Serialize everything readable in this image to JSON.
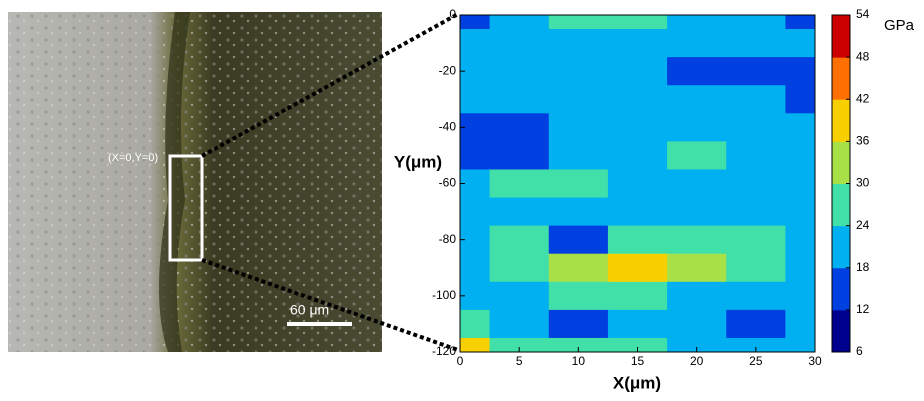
{
  "chart_data": {
    "type": "contour",
    "xlabel": "X(μm)",
    "ylabel": "Y(μm)",
    "xlim": [
      0,
      30
    ],
    "ylim": [
      -120,
      0
    ],
    "xticks": [
      0,
      5,
      10,
      15,
      20,
      25,
      30
    ],
    "yticks": [
      0,
      -20,
      -40,
      -60,
      -80,
      -100,
      -120
    ],
    "x": [
      0,
      5,
      10,
      15,
      20,
      25,
      30
    ],
    "y": [
      0,
      -10,
      -20,
      -30,
      -40,
      -50,
      -60,
      -70,
      -80,
      -90,
      -100,
      -110,
      -120
    ],
    "z": [
      [
        14,
        20,
        26,
        28,
        20,
        20,
        14
      ],
      [
        20,
        20,
        20,
        20,
        20,
        20,
        20
      ],
      [
        20,
        20,
        20,
        20,
        15,
        15,
        15
      ],
      [
        20,
        20,
        20,
        20,
        20,
        20,
        15
      ],
      [
        15,
        15,
        20,
        20,
        20,
        20,
        20
      ],
      [
        14,
        15,
        20,
        20,
        26,
        20,
        20
      ],
      [
        20,
        26,
        26,
        20,
        20,
        20,
        20
      ],
      [
        20,
        20,
        20,
        20,
        20,
        20,
        20
      ],
      [
        20,
        26,
        16,
        26,
        26,
        26,
        20
      ],
      [
        20,
        26,
        32,
        38,
        32,
        26,
        20
      ],
      [
        20,
        20,
        26,
        26,
        20,
        20,
        20
      ],
      [
        26,
        20,
        15,
        20,
        20,
        15,
        20
      ],
      [
        40,
        26,
        26,
        26,
        20,
        20,
        20
      ]
    ],
    "colorbar": {
      "label": "GPa",
      "levels": [
        6,
        12,
        18,
        24,
        30,
        36,
        42,
        48,
        54
      ],
      "colors": [
        "#00008f",
        "#0040e0",
        "#00b0f0",
        "#40e0a8",
        "#a8e048",
        "#f8d000",
        "#ff7000",
        "#cc0000"
      ]
    },
    "image_annotations": {
      "origin_label": "(X=0,Y=0)",
      "scale_label": "60 μm"
    }
  }
}
